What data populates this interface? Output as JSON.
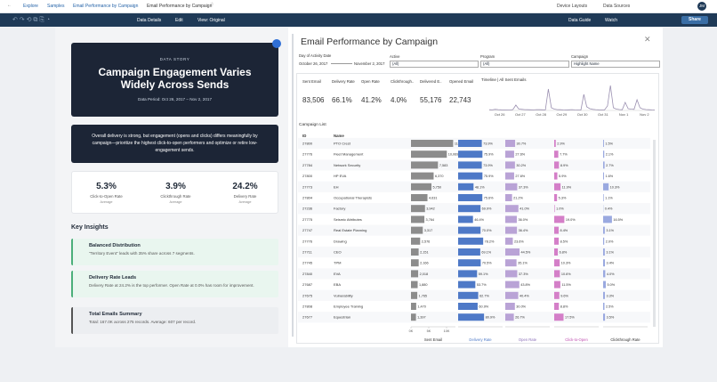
{
  "topbar": {
    "breadcrumb": [
      "Explore",
      "Samples",
      "Email Performance by Campaign",
      "Email Performance by Campaign"
    ],
    "actions": [
      "Device Layouts",
      "Data Sources"
    ],
    "avatar": "JM"
  },
  "toolbar": {
    "left": [
      "Data Details",
      "Edit",
      "View: Original"
    ],
    "right": [
      "Data Guide",
      "Watch",
      "Share"
    ]
  },
  "story": {
    "kicker": "DATA STORY",
    "title": "Campaign Engagement Varies Widely Across Sends",
    "period": "Data Period: Oct 26, 2017 – Nov 2, 2017",
    "summary": "Overall delivery is strong, but engagement (opens and clicks) differs meaningfully by campaign—prioritize the highest click-to-open performers and optimize or retire low-engagement sends.",
    "kpis": [
      {
        "value": "5.3%",
        "label": "Click-to-Open Rate",
        "sub": "Average"
      },
      {
        "value": "3.9%",
        "label": "Clickthrough Rate",
        "sub": "Average"
      },
      {
        "value": "24.2%",
        "label": "Delivery Rate",
        "sub": "Average"
      }
    ],
    "insights_title": "Key Insights",
    "insights": [
      {
        "title": "Balanced Distribution",
        "body": "“Territory Event” leads with 35% share across 7 segments."
      },
      {
        "title": "Delivery Rate Leads",
        "body": "Delivery Rate at 24.2% is the top performer. Open Rate at 0.0% has room for improvement."
      },
      {
        "title": "Total Emails Summary",
        "body": "Total: 167.0K across 275 records. Average: 607 per record."
      }
    ]
  },
  "dashboard": {
    "title": "Email Performance by Campaign",
    "filters": [
      {
        "label": "Day of Activity Date",
        "values": [
          "October 26, 2017",
          "November 2, 2017"
        ]
      },
      {
        "label": "Active",
        "values": [
          "(All)"
        ]
      },
      {
        "label": "Program",
        "values": [
          "(All)"
        ]
      },
      {
        "label": "Campaign",
        "values": [
          "Highlight Name"
        ]
      }
    ],
    "kpis": [
      {
        "label": "Sent Email",
        "value": "83,506"
      },
      {
        "label": "Delivery Rate",
        "value": "66.1%"
      },
      {
        "label": "Open Rate",
        "value": "41.2%"
      },
      {
        "label": "Clickthrough..",
        "value": "4.0%"
      },
      {
        "label": "Delivered E..",
        "value": "55,176"
      },
      {
        "label": "Opened Email",
        "value": "22,743"
      }
    ],
    "timeline": {
      "title": "Timeline | All Sent Emails",
      "color": "#9a8fb0",
      "xticks": [
        "Oct 26",
        "Oct 27",
        "Oct 28",
        "Oct 29",
        "Oct 30",
        "Oct 31",
        "Nov 1",
        "Nov 2"
      ],
      "values": [
        80,
        60,
        120,
        90,
        70,
        60,
        50,
        40,
        100,
        600,
        150,
        120,
        90,
        80,
        70,
        60,
        90,
        80,
        70,
        60,
        2400,
        300,
        150,
        90,
        80,
        60,
        50,
        70,
        90,
        60,
        50,
        40,
        1800,
        400,
        200,
        120,
        90,
        70,
        60,
        50,
        500,
        2800,
        300,
        150,
        100,
        80,
        900,
        200,
        150,
        120,
        1200,
        300,
        150,
        100,
        80,
        60,
        50
      ]
    },
    "campaign_list": {
      "title": "Campaign List",
      "headers": [
        "ID",
        "Name"
      ],
      "ids": [
        "27800",
        "27776",
        "27784",
        "27800",
        "27773",
        "27804",
        "27236",
        "27775",
        "27747",
        "27776",
        "27711",
        "27745",
        "27840",
        "27687",
        "27675",
        "27808",
        "27677"
      ],
      "names": [
        "PTO Crest",
        "Fleet Management",
        "Network Security",
        "HP EVA",
        "EH",
        "Occupational Therapists",
        "Factory",
        "Seismic Attributes",
        "Real Estate Planning",
        "Drawing",
        "CEO",
        "TPM",
        "EVA",
        "EBA",
        "Vulnerability",
        "Employee Training",
        "Equestrian"
      ],
      "measures": [
        {
          "name": "Sent Email",
          "color": "#8c8c8c",
          "label_color": "#333333",
          "xlim": [
            0,
            12000
          ],
          "xticks": [
            {
              "value": 0,
              "label": "0K"
            },
            {
              "value": 5000,
              "label": "5K"
            },
            {
              "value": 10000,
              "label": "10K"
            }
          ],
          "values": [
            11852,
            10069,
            7583,
            6370,
            5750,
            4631,
            3942,
            3764,
            3317,
            2576,
            2151,
            2166,
            2018,
            1880,
            1765,
            1470,
            1397
          ],
          "value_labels": [
            "11,852",
            "10,069",
            "7,583",
            "6,370",
            "5,750",
            "4,631",
            "3,942",
            "3,764",
            "3,317",
            "2,576",
            "2,151",
            "2,166",
            "2,018",
            "1,880",
            "1,765",
            "1,470",
            "1,397"
          ]
        },
        {
          "name": "Delivery Rate",
          "color": "#4e79c7",
          "label_color": "#4e79c7",
          "xlim": [
            0,
            100
          ],
          "values": [
            73.9,
            75.9,
            73.9,
            75.9,
            48.1,
            75.6,
            69.9,
            46.4,
            70.0,
            78.2,
            69.1,
            70.5,
            59.1,
            53.7,
            62.7,
            60.9,
            80.9
          ],
          "value_labels": [
            "73.9%",
            "75.9%",
            "73.9%",
            "75.9%",
            "48.1%",
            "75.6%",
            "69.9%",
            "46.4%",
            "70.0%",
            "78.2%",
            "69.1%",
            "70.5%",
            "59.1%",
            "53.7%",
            "62.7%",
            "60.9%",
            "80.9%"
          ]
        },
        {
          "name": "Open Rate",
          "color": "#b9a3d6",
          "label_color": "#8a6fb8",
          "xlim": [
            0,
            100
          ],
          "values": [
            30.7,
            27.6,
            30.2,
            27.6,
            37.3,
            21.2,
            41.0,
            36.0,
            36.4,
            23.6,
            44.5,
            35.1,
            37.3,
            43.8,
            40.4,
            30.0,
            26.7
          ],
          "value_labels": [
            "30.7%",
            "27.6%",
            "30.2%",
            "27.6%",
            "37.3%",
            "21.2%",
            "41.0%",
            "36.0%",
            "36.4%",
            "23.6%",
            "44.5%",
            "35.1%",
            "37.3%",
            "43.8%",
            "40.4%",
            "30.0%",
            "26.7%"
          ]
        },
        {
          "name": "Click-to-Open",
          "color": "#d47fc8",
          "label_color": "#c04fb0",
          "xlim": [
            0,
            60
          ],
          "values": [
            2.9,
            7.7,
            8.9,
            5.9,
            11.9,
            5.3,
            1.0,
            19.0,
            8.4,
            8.5,
            6.8,
            10.3,
            10.6,
            11.5,
            9.6,
            8.8,
            17.5
          ],
          "value_labels": [
            "2.9%",
            "7.7%",
            "8.9%",
            "5.9%",
            "11.9%",
            "5.3%",
            "1.0%",
            "19.0%",
            "8.4%",
            "8.5%",
            "6.8%",
            "10.3%",
            "10.6%",
            "11.5%",
            "9.6%",
            "8.8%",
            "17.5%"
          ]
        },
        {
          "name": "Clickthrough Rate",
          "color": "#9aa9e0",
          "label_color": "#333333",
          "xlim": [
            0,
            60
          ],
          "values": [
            1.5,
            2.1,
            2.7,
            1.6,
            10.3,
            1.1,
            0.4,
            16.5,
            3.1,
            2.0,
            3.1,
            3.4,
            4.0,
            5.0,
            3.3,
            2.5,
            3.5
          ],
          "value_labels": [
            "1.5%",
            "2.1%",
            "2.7%",
            "1.6%",
            "10.3%",
            "1.1%",
            "0.4%",
            "16.5%",
            "3.1%",
            "2.0%",
            "3.1%",
            "3.4%",
            "4.0%",
            "5.0%",
            "3.3%",
            "2.5%",
            "3.5%"
          ]
        }
      ]
    }
  }
}
